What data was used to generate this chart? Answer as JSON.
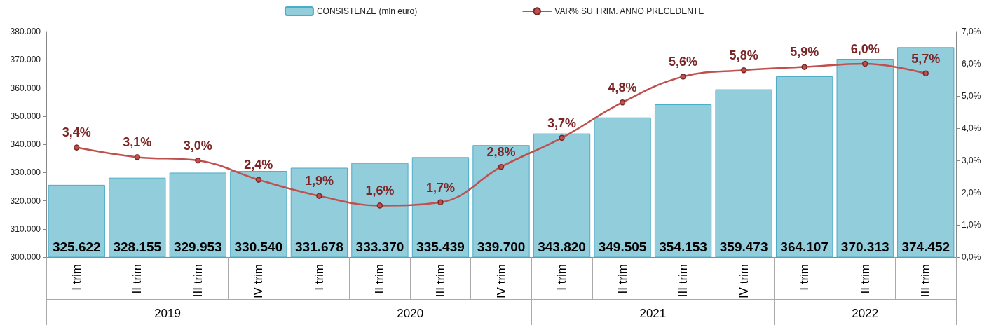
{
  "chart_data": {
    "type": "bar",
    "categories": [
      "I trim",
      "II trim",
      "III trim",
      "IV trim",
      "I trim",
      "II trim",
      "III trim",
      "IV trim",
      "I trim",
      "II trim",
      "III trim",
      "IV trim",
      "I trim",
      "II trim",
      "III trim"
    ],
    "annotations": [
      "2019",
      "2020",
      "2021",
      "2022"
    ],
    "series": [
      {
        "name": "CONSISTENZE (mln euro)",
        "color": "#92cddc",
        "values": [
          325622,
          328155,
          329953,
          330540,
          331678,
          333370,
          335439,
          339700,
          343820,
          349505,
          354153,
          359473,
          364107,
          370313,
          374452
        ],
        "value_labels": [
          "325.622",
          "328.155",
          "329.953",
          "330.540",
          "331.678",
          "333.370",
          "335.439",
          "339.700",
          "343.820",
          "349.505",
          "354.153",
          "359.473",
          "364.107",
          "370.313",
          "374.452"
        ]
      },
      {
        "name": "VAR% SU TRIM. ANNO PRECEDENTE",
        "type": "line",
        "axis": "y2",
        "color": "#c0504d",
        "marker": "circle",
        "values": [
          3.4,
          3.1,
          3.0,
          2.4,
          1.9,
          1.6,
          1.7,
          2.8,
          3.7,
          4.8,
          5.6,
          5.8,
          5.9,
          6.0,
          5.7
        ],
        "value_labels": [
          "3,4%",
          "3,1%",
          "3,0%",
          "2,4%",
          "1,9%",
          "1,6%",
          "1,7%",
          "2,8%",
          "3,7%",
          "4,8%",
          "5,6%",
          "5,8%",
          "5,9%",
          "6,0%",
          "5,7%"
        ]
      }
    ],
    "ylim": [
      300000,
      380000
    ],
    "yticks": [
      {
        "value": 300000,
        "label": "300.000"
      },
      {
        "value": 310000,
        "label": "310.000"
      },
      {
        "value": 320000,
        "label": "320.000"
      },
      {
        "value": 330000,
        "label": "330.000"
      },
      {
        "value": 340000,
        "label": "340.000"
      },
      {
        "value": 350000,
        "label": "350.000"
      },
      {
        "value": 360000,
        "label": "360.000"
      },
      {
        "value": 370000,
        "label": "370.000"
      },
      {
        "value": 380000,
        "label": "380.000"
      }
    ],
    "y2lim": [
      0,
      7
    ],
    "y2ticks": [
      {
        "value": 0,
        "label": "0,0%"
      },
      {
        "value": 1,
        "label": "1,0%"
      },
      {
        "value": 2,
        "label": "2,0%"
      },
      {
        "value": 3,
        "label": "3,0%"
      },
      {
        "value": 4,
        "label": "4,0%"
      },
      {
        "value": 5,
        "label": "5,0%"
      },
      {
        "value": 6,
        "label": "6,0%"
      },
      {
        "value": 7,
        "label": "7,0%"
      }
    ],
    "grid": false,
    "legend": "top"
  }
}
